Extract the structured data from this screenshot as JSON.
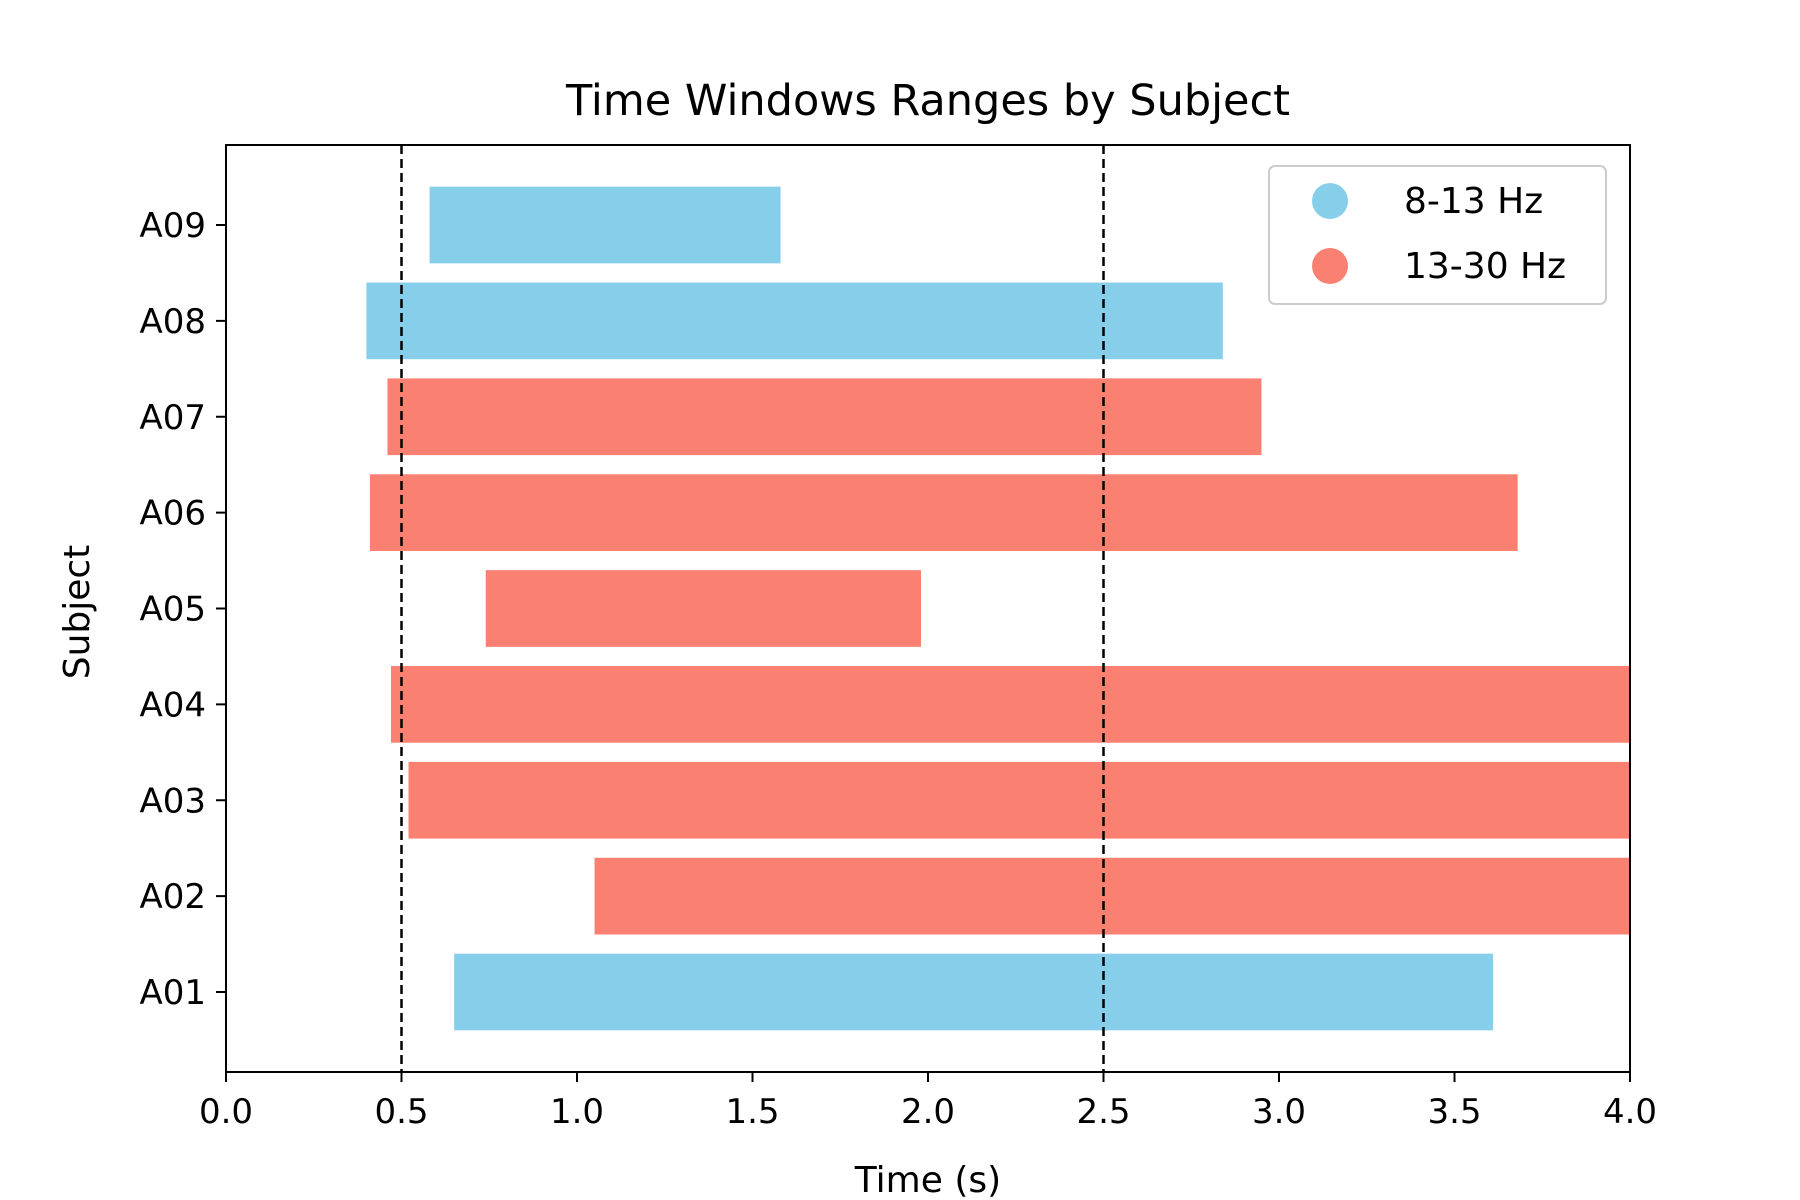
{
  "chart_data": {
    "type": "bar",
    "orientation": "horizontal",
    "title": "Time Windows Ranges by Subject",
    "xlabel": "Time (s)",
    "ylabel": "Subject",
    "xlim": [
      0,
      4
    ],
    "xticks": [
      "0.0",
      "0.5",
      "1.0",
      "1.5",
      "2.0",
      "2.5",
      "3.0",
      "3.5",
      "4.0"
    ],
    "grid": false,
    "legend_position": "top-right",
    "reference_lines": [
      0.5,
      2.5
    ],
    "series": [
      {
        "name": "8-13 Hz",
        "color": "#87CEEB"
      },
      {
        "name": "13-30 Hz",
        "color": "#FA8072"
      }
    ],
    "bars": [
      {
        "subject": "A01",
        "start": 0.65,
        "end": 3.61,
        "band": "8-13 Hz"
      },
      {
        "subject": "A02",
        "start": 1.05,
        "end": 4.0,
        "band": "13-30 Hz"
      },
      {
        "subject": "A03",
        "start": 0.52,
        "end": 4.0,
        "band": "13-30 Hz"
      },
      {
        "subject": "A04",
        "start": 0.47,
        "end": 4.0,
        "band": "13-30 Hz"
      },
      {
        "subject": "A05",
        "start": 0.74,
        "end": 1.98,
        "band": "13-30 Hz"
      },
      {
        "subject": "A06",
        "start": 0.41,
        "end": 3.68,
        "band": "13-30 Hz"
      },
      {
        "subject": "A07",
        "start": 0.46,
        "end": 2.95,
        "band": "13-30 Hz"
      },
      {
        "subject": "A08",
        "start": 0.4,
        "end": 2.84,
        "band": "8-13 Hz"
      },
      {
        "subject": "A09",
        "start": 0.58,
        "end": 1.58,
        "band": "8-13 Hz"
      }
    ]
  }
}
